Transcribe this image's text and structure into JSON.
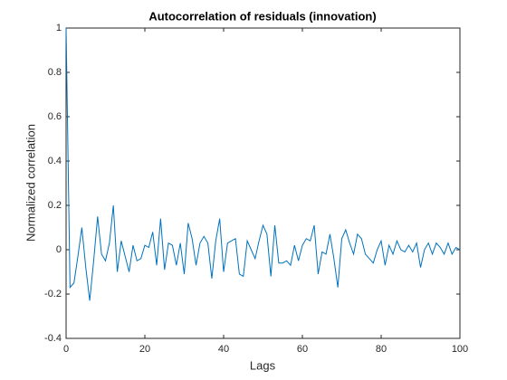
{
  "chart_data": {
    "type": "line",
    "title": "Autocorrelation of residuals (innovation)",
    "xlabel": "Lags",
    "ylabel": "Normalized correlation",
    "x": [
      0,
      1,
      2,
      3,
      4,
      5,
      6,
      7,
      8,
      9,
      10,
      11,
      12,
      13,
      14,
      15,
      16,
      17,
      18,
      19,
      20,
      21,
      22,
      23,
      24,
      25,
      26,
      27,
      28,
      29,
      30,
      31,
      32,
      33,
      34,
      35,
      36,
      37,
      38,
      39,
      40,
      41,
      42,
      43,
      44,
      45,
      46,
      47,
      48,
      49,
      50,
      51,
      52,
      53,
      54,
      55,
      56,
      57,
      58,
      59,
      60,
      61,
      62,
      63,
      64,
      65,
      66,
      67,
      68,
      69,
      70,
      71,
      72,
      73,
      74,
      75,
      76,
      77,
      78,
      79,
      80,
      81,
      82,
      83,
      84,
      85,
      86,
      87,
      88,
      89,
      90,
      91,
      92,
      93,
      94,
      95,
      96,
      97,
      98,
      99,
      100
    ],
    "series": [
      {
        "color": "#0072bd",
        "values": [
          1,
          -0.17,
          -0.15,
          -0.03,
          0.1,
          -0.08,
          -0.23,
          -0.05,
          0.15,
          -0.02,
          -0.05,
          0.03,
          0.2,
          -0.1,
          0.04,
          -0.03,
          -0.1,
          0.02,
          -0.05,
          -0.04,
          0.02,
          0.01,
          0.08,
          -0.07,
          0.14,
          -0.09,
          0.03,
          0.02,
          -0.07,
          0.03,
          -0.11,
          0.12,
          0.05,
          -0.07,
          0.03,
          0.06,
          0.03,
          -0.13,
          0.04,
          0.14,
          -0.1,
          0.03,
          0.04,
          0.05,
          -0.11,
          -0.12,
          0.04,
          0.0,
          -0.04,
          0.04,
          0.11,
          0.07,
          -0.12,
          0.11,
          -0.06,
          -0.06,
          -0.05,
          -0.07,
          0.02,
          -0.05,
          0.02,
          0.05,
          0.04,
          0.11,
          -0.11,
          -0.01,
          -0.02,
          0.07,
          -0.04,
          -0.17,
          0.05,
          0.09,
          0.03,
          -0.02,
          0.07,
          0.05,
          -0.02,
          -0.04,
          -0.06,
          0.0,
          0.04,
          -0.07,
          0.02,
          -0.02,
          0.04,
          0.0,
          -0.01,
          0.02,
          -0.01,
          0.03,
          -0.08,
          0.0,
          0.03,
          -0.02,
          0.03,
          0.01,
          -0.02,
          0.03,
          -0.02,
          0.01,
          0.0
        ]
      }
    ],
    "xlim": [
      0,
      100
    ],
    "xticks": [
      0,
      20,
      40,
      60,
      80,
      100
    ],
    "ylim": [
      -0.4,
      1
    ],
    "yticks": [
      -0.4,
      -0.2,
      0,
      0.2,
      0.4,
      0.6,
      0.8,
      1
    ]
  }
}
